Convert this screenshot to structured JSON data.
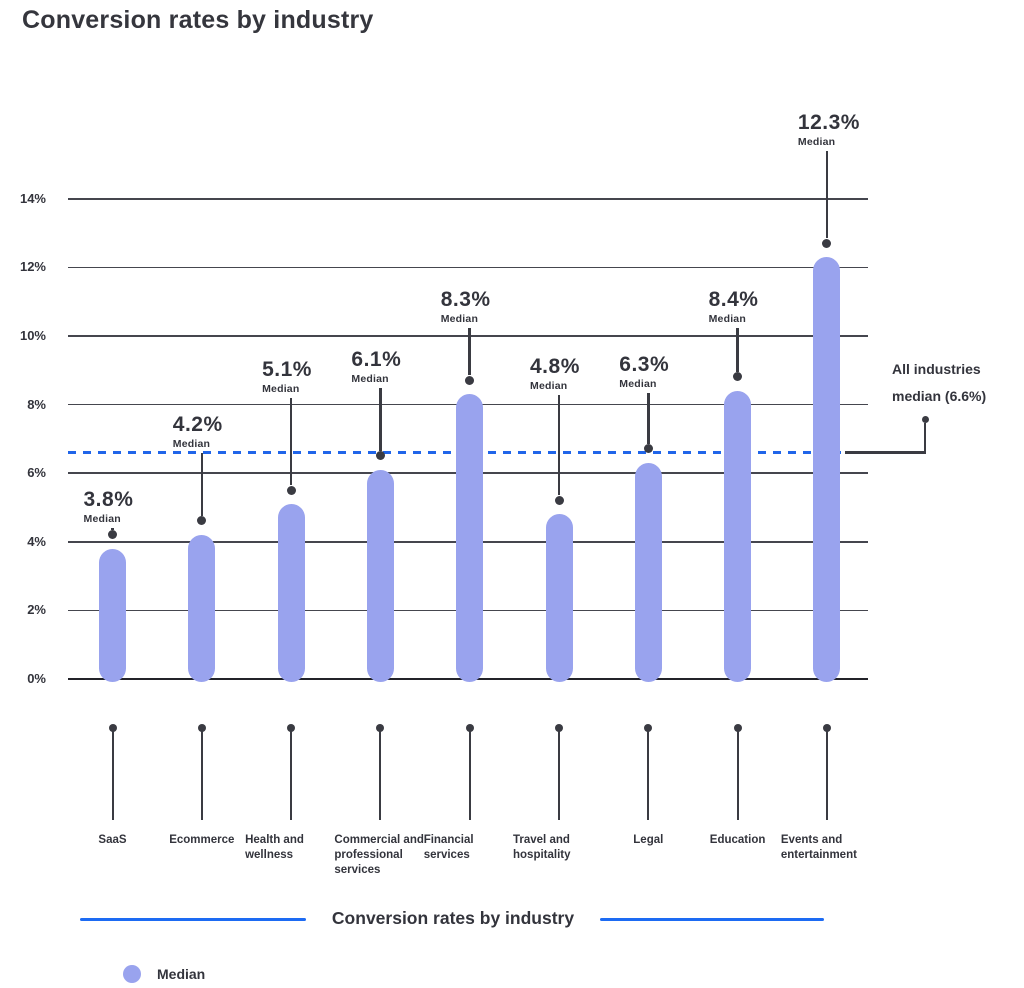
{
  "title": "Conversion rates by industry",
  "chart_data": {
    "type": "bar",
    "title": "Conversion rates by industry",
    "categories": [
      "SaaS",
      "Ecommerce",
      "Health and wellness",
      "Commercial and professional services",
      "Financial services",
      "Travel and hospitality",
      "Legal",
      "Education",
      "Events and entertainment"
    ],
    "series": [
      {
        "name": "Median",
        "values": [
          3.8,
          4.2,
          5.1,
          6.1,
          8.3,
          4.8,
          6.3,
          8.4,
          12.3
        ]
      }
    ],
    "value_label_suffix": "%",
    "value_label_sublabel": "Median",
    "y_ticks": [
      "0%",
      "2%",
      "4%",
      "6%",
      "8%",
      "10%",
      "12%",
      "14%"
    ],
    "ylim": [
      0,
      14
    ],
    "grid": true,
    "reference_line": {
      "value": 6.6,
      "label_line1": "All industries",
      "label_line2": "median (6.6%)",
      "style": "dotted"
    },
    "legend_position": "bottom-left",
    "legend": [
      {
        "label": "Median",
        "color": "#99A3EE"
      }
    ]
  },
  "footer": {
    "caption": "Conversion rates by industry"
  },
  "colors": {
    "bar": "#99A3EE",
    "reference_line": "#2065E9",
    "accent_blue": "#1D6BF3",
    "text": "#33343C",
    "gridline": "#45464E",
    "axis": "#232329",
    "connector": "#3A3B42",
    "background": "#FFFFFF"
  }
}
